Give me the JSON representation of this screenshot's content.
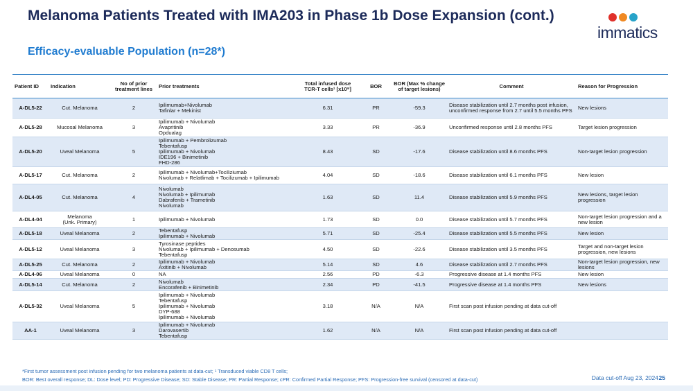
{
  "header": {
    "title": "Melanoma Patients Treated with IMA203 in Phase 1b Dose Expansion (cont.)",
    "subtitle": "Efficacy-evaluable Population (n=28*)",
    "logo": "immatics"
  },
  "table": {
    "columns": [
      "Patient ID",
      "Indication",
      "No of prior\ntreatment lines",
      "Prior treatments",
      "Total infused dose\nTCR-T cells¹ [x10⁹]",
      "BOR",
      "BOR (Max % change\nof target lesions)",
      "Comment",
      "Reason for Progression"
    ],
    "rows": [
      {
        "id": "A-DL5-22",
        "indication": "Cut. Melanoma",
        "lines": "2",
        "treatments": [
          "Ipilimumab+Nivolumab",
          "Tafinlar + Mekinist"
        ],
        "dose": "6.31",
        "bor": "PR",
        "change": "-59.3",
        "comment": "Disease stabilization until 2.7 months post infusion, unconfirmed response from 2.7 until 5.5 months PFS",
        "reason": "New lesions"
      },
      {
        "id": "A-DL5-28",
        "indication": "Mucosal Melanoma",
        "lines": "3",
        "treatments": [
          "Ipilimumab + Nivolumab",
          "Avapritinib",
          "Opdualag"
        ],
        "dose": "3.33",
        "bor": "PR",
        "change": "-36.9",
        "comment": "Unconfirmed response until 2.8 months PFS",
        "reason": "Target lesion progression"
      },
      {
        "id": "A-DL5-20",
        "indication": "Uveal Melanoma",
        "lines": "5",
        "treatments": [
          "Ipilimumab + Pembrolizumab",
          "Tebentafusp",
          "Ipilimumab + Nivolumab",
          "IDE196 + Binimetinib",
          "FHD-286"
        ],
        "dose": "8.43",
        "bor": "SD",
        "change": "-17.6",
        "comment": "Disease stabilization until 8.6 months PFS",
        "reason": "Non-target lesion progression"
      },
      {
        "id": "A-DL5-17",
        "indication": "Cut. Melanoma",
        "lines": "2",
        "treatments": [
          "Ipilimumab + Nivolumab+Tociliziumab",
          "Nivolumab + Relatlimab + Tocilizumab + Ipilimumab"
        ],
        "dose": "4.04",
        "bor": "SD",
        "change": "-18.6",
        "comment": "Disease stabilization until 6.1 months PFS",
        "reason": "New lesion"
      },
      {
        "id": "A-DL4-05",
        "indication": "Cut. Melanoma",
        "lines": "4",
        "treatments": [
          "Nivolumab",
          "Nivolumab + Ipilimumab",
          "Dabrafenib + Trametinib",
          "Nivolumab"
        ],
        "dose": "1.63",
        "bor": "SD",
        "change": "11.4",
        "comment": "Disease stabilization until 5.9 months PFS",
        "reason": "New lesions, target lesion progression"
      },
      {
        "id": "A-DL4-04",
        "indication": "Melanoma\n(Unk. Primary)",
        "lines": "1",
        "treatments": [
          "Ipilimumab + Nivolumab"
        ],
        "dose": "1.73",
        "bor": "SD",
        "change": "0.0",
        "comment": "Disease stabilization until 5.7 months PFS",
        "reason": "Non-target lesion progression and a new lesion"
      },
      {
        "id": "A-DL5-18",
        "indication": "Uveal Melanoma",
        "lines": "2",
        "treatments": [
          "Tebentafusp",
          "Ipilimumab + Nivolumab"
        ],
        "dose": "5.71",
        "bor": "SD",
        "change": "-25.4",
        "comment": "Disease stabilization until 5.5 months PFS",
        "reason": "New lesion"
      },
      {
        "id": "A-DL5-12",
        "indication": "Uveal Melanoma",
        "lines": "3",
        "treatments": [
          "Tyrosinase peptides",
          "Nivolumab + Ipilimumab + Denosumab",
          "Tebentafusp"
        ],
        "dose": "4.50",
        "bor": "SD",
        "change": "-22.6",
        "comment": "Disease stabilization until 3.5 months PFS",
        "reason": "Target and non-target lesion progression, new lesions"
      },
      {
        "id": "A-DL5-25",
        "indication": "Cut. Melanoma",
        "lines": "2",
        "treatments": [
          "Ipilimumab + Nivolumab",
          "Axitinib + Nivolumab"
        ],
        "dose": "5.14",
        "bor": "SD",
        "change": "4.6",
        "comment": "Disease stabilization until 2.7 months PFS",
        "reason": "Non-target lesion progression, new lesions"
      },
      {
        "id": "A-DL4-06",
        "indication": "Uveal Melanoma",
        "lines": "0",
        "treatments": [
          "NA"
        ],
        "dose": "2.56",
        "bor": "PD",
        "change": "-6.3",
        "comment": "Progressive disease at 1.4 months PFS",
        "reason": "New lesion"
      },
      {
        "id": "A-DL5-14",
        "indication": "Cut. Melanoma",
        "lines": "2",
        "treatments": [
          "Nivolumab",
          "Encorafenib + Binimetinib"
        ],
        "dose": "2.34",
        "bor": "PD",
        "change": "-41.5",
        "comment": "Progressive disease at 1.4 months PFS",
        "reason": "New lesions"
      },
      {
        "id": "A-DL5-32",
        "indication": "Uveal Melanoma",
        "lines": "5",
        "treatments": [
          "Ipilimumab + Nivolumab",
          "Tebentafusp",
          "Ipilimumab + Nivolumab",
          "DYP-688",
          "Ipilimumab + Nivolumab"
        ],
        "dose": "3.18",
        "bor": "N/A",
        "change": "N/A",
        "comment": "First scan post infusion pending at data cut-off"
      },
      {
        "id": "AA-1",
        "indication": "Uveal Melanoma",
        "lines": "3",
        "treatments": [
          "Ipilimumab + Nivolumab",
          "Darovasertib",
          "Tebentafusp"
        ],
        "dose": "1.62",
        "bor": "N/A",
        "change": "N/A",
        "comment": "First scan post infusion pending at data cut-off"
      }
    ]
  },
  "footer": {
    "notes": [
      "*First tumor assessment post infusion pending for two melanoma patients at data-cut; ¹ Transduced viable CD8 T cells;",
      "BOR: Best overall response; DL: Dose level; PD: Progressive Disease; SD: Stable Disease; PR: Partial Response; cPR: Confirmed Partial Response; PFS: Progression-free survival (censored at  data-cut)"
    ],
    "cutoff": "Data cut-off Aug 23, 2024",
    "page": "25"
  }
}
